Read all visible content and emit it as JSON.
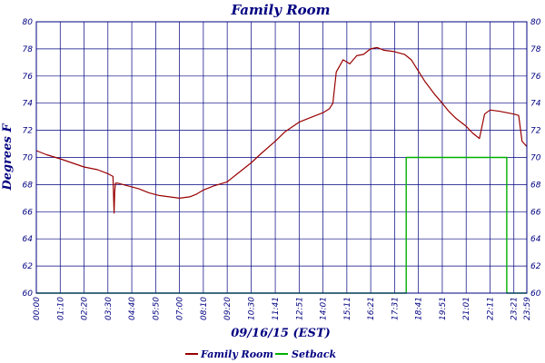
{
  "chart_data": {
    "type": "line",
    "title": "Family Room",
    "xlabel": "09/16/15 (EST)",
    "ylabel": "Degrees F",
    "ylim": [
      60,
      80
    ],
    "yticks": [
      60,
      62,
      64,
      66,
      68,
      70,
      72,
      74,
      76,
      78,
      80
    ],
    "xlim": [
      "00:00",
      "23:59"
    ],
    "xticks": [
      "00:00",
      "01:10",
      "02:20",
      "03:30",
      "04:40",
      "05:50",
      "07:00",
      "08:10",
      "09:20",
      "10:30",
      "11:41",
      "12:51",
      "14:01",
      "15:11",
      "16:21",
      "17:31",
      "18:41",
      "19:51",
      "21:01",
      "22:11",
      "23:21",
      "23:59"
    ],
    "grid": true,
    "legend_position": "bottom",
    "colors": {
      "grid": "#000080",
      "family_room": "#990000",
      "setback": "#00b000",
      "text": "#000080"
    },
    "series": [
      {
        "name": "Family Room",
        "x": [
          "00:00",
          "00:30",
          "01:10",
          "01:45",
          "02:20",
          "03:00",
          "03:30",
          "03:45",
          "03:48",
          "03:50",
          "03:52",
          "04:00",
          "04:30",
          "05:00",
          "05:30",
          "06:00",
          "06:30",
          "07:00",
          "07:30",
          "07:50",
          "08:10",
          "08:40",
          "09:20",
          "09:50",
          "10:30",
          "11:00",
          "11:41",
          "12:10",
          "12:51",
          "13:30",
          "14:01",
          "14:20",
          "14:30",
          "14:40",
          "15:00",
          "15:20",
          "15:40",
          "16:00",
          "16:20",
          "16:40",
          "17:00",
          "17:30",
          "18:00",
          "18:20",
          "18:40",
          "19:00",
          "19:30",
          "19:51",
          "20:10",
          "20:30",
          "21:01",
          "21:20",
          "21:40",
          "21:55",
          "22:11",
          "22:40",
          "23:00",
          "23:21",
          "23:35",
          "23:45",
          "23:59"
        ],
        "values": [
          70.5,
          70.2,
          69.9,
          69.6,
          69.3,
          69.1,
          68.8,
          68.6,
          65.9,
          67.5,
          68.1,
          68.1,
          67.9,
          67.7,
          67.4,
          67.2,
          67.1,
          67.0,
          67.1,
          67.3,
          67.6,
          67.9,
          68.2,
          68.8,
          69.6,
          70.3,
          71.2,
          71.9,
          72.6,
          73.0,
          73.3,
          73.6,
          74.0,
          76.3,
          77.2,
          76.9,
          77.5,
          77.6,
          78.0,
          78.1,
          77.9,
          77.8,
          77.6,
          77.2,
          76.4,
          75.6,
          74.6,
          74.0,
          73.4,
          72.9,
          72.3,
          71.8,
          71.4,
          73.2,
          73.5,
          73.4,
          73.3,
          73.2,
          73.1,
          71.2,
          70.8
        ]
      },
      {
        "name": "Setback",
        "x": [
          "00:00",
          "18:05",
          "18:05",
          "23:00",
          "23:00",
          "23:59"
        ],
        "values": [
          60,
          60,
          70,
          70,
          60,
          60
        ]
      }
    ]
  }
}
